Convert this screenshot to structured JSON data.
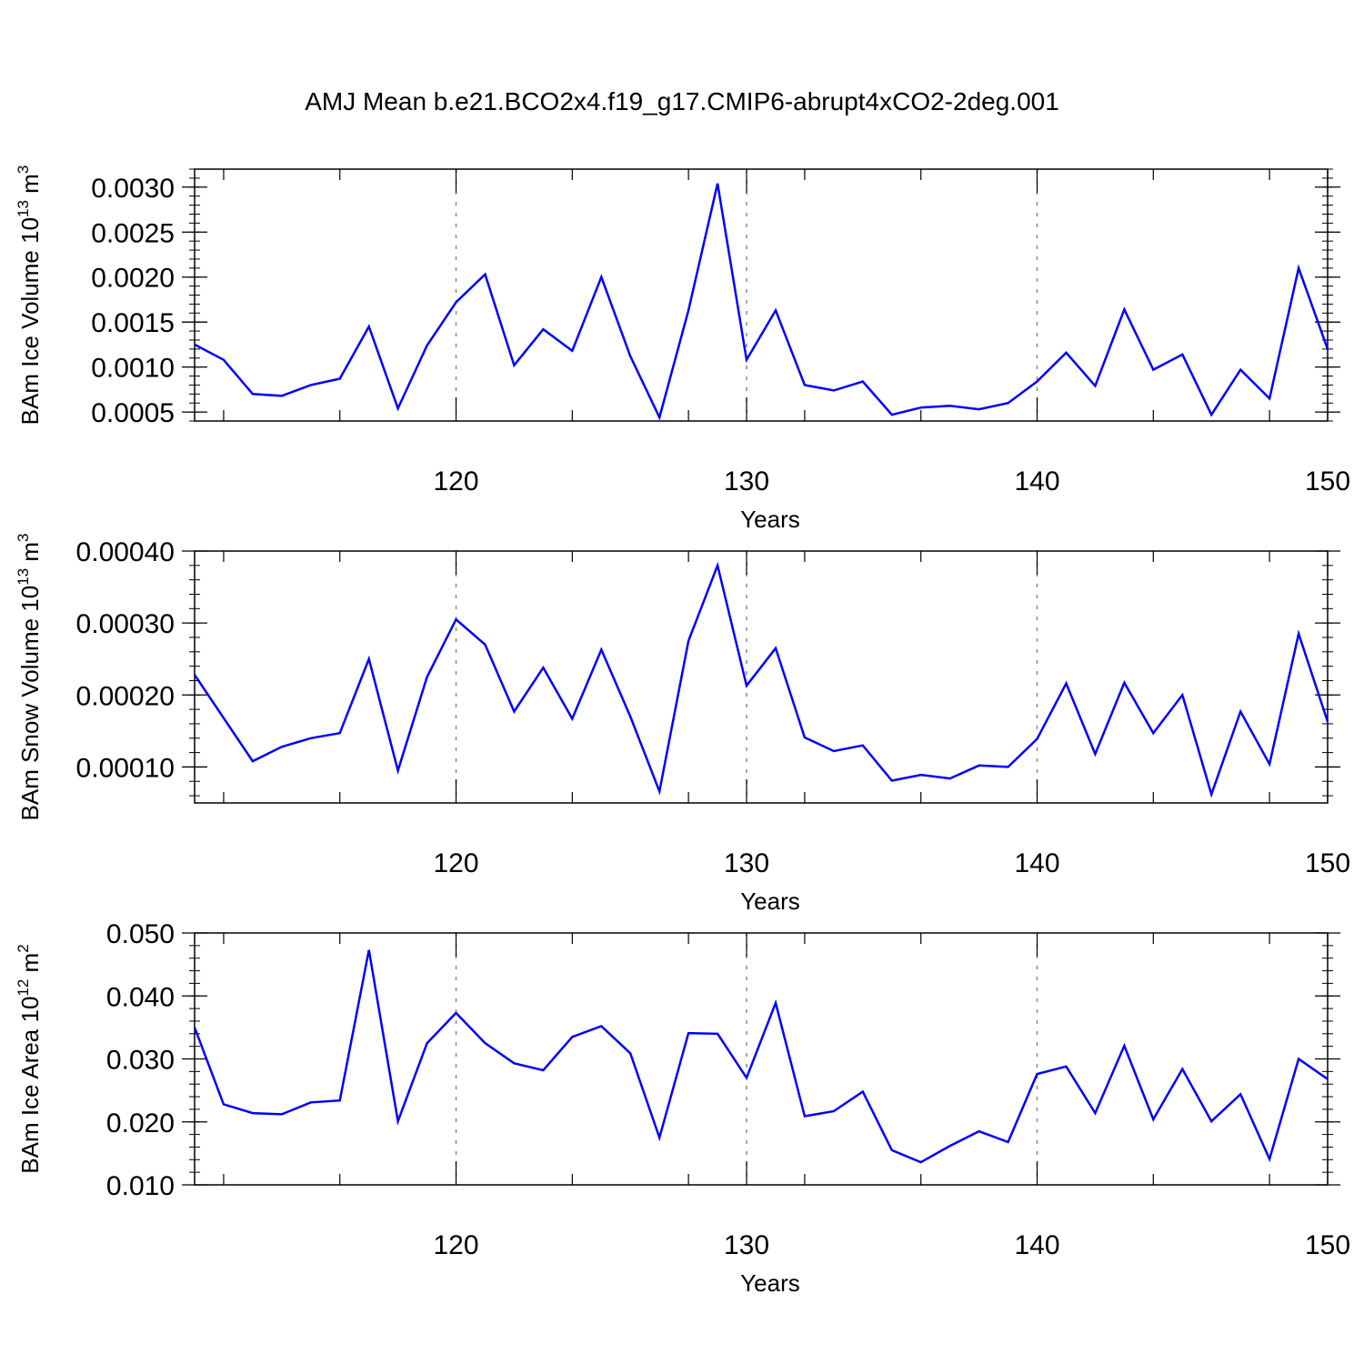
{
  "title": "AMJ Mean b.e21.BCO2x4.f19_g17.CMIP6-abrupt4xCO2-2deg.001",
  "chart_data": [
    {
      "type": "line",
      "xlabel": "Years",
      "ylabel": {
        "text": "BAm Ice Volume 10",
        "exp": "13",
        "unit": " m",
        "unit_exp": "3"
      },
      "xlim": [
        111,
        150
      ],
      "ylim": [
        0.0004,
        0.0032
      ],
      "yticks": [
        "0.0005",
        "0.0010",
        "0.0015",
        "0.0020",
        "0.0025",
        "0.0030"
      ],
      "xticks": [
        "120",
        "130",
        "140",
        "150"
      ],
      "grid": "x-dashed",
      "line_color": "#0000ff",
      "x": [
        111,
        112,
        113,
        114,
        115,
        116,
        117,
        118,
        119,
        120,
        121,
        122,
        123,
        124,
        125,
        126,
        127,
        128,
        129,
        130,
        131,
        132,
        133,
        134,
        135,
        136,
        137,
        138,
        139,
        140,
        141,
        142,
        143,
        144,
        145,
        146,
        147,
        148,
        149,
        150
      ],
      "values": [
        0.00125,
        0.00108,
        0.0007,
        0.00068,
        0.0008,
        0.00087,
        0.00145,
        0.00054,
        0.00124,
        0.00172,
        0.00203,
        0.00102,
        0.00142,
        0.00118,
        0.002,
        0.00112,
        0.00044,
        0.00163,
        0.00304,
        0.00108,
        0.00163,
        0.0008,
        0.00074,
        0.00084,
        0.00047,
        0.00055,
        0.00057,
        0.00053,
        0.0006,
        0.00084,
        0.00116,
        0.00079,
        0.00164,
        0.00097,
        0.00114,
        0.00047,
        0.00097,
        0.00065,
        0.0021,
        0.0012
      ]
    },
    {
      "type": "line",
      "xlabel": "Years",
      "ylabel": {
        "text": "BAm Snow Volume 10",
        "exp": "13",
        "unit": " m",
        "unit_exp": "3"
      },
      "xlim": [
        111,
        150
      ],
      "ylim": [
        5e-05,
        0.0004
      ],
      "yticks": [
        "0.00010",
        "0.00020",
        "0.00030",
        "0.00040"
      ],
      "xticks": [
        "120",
        "130",
        "140",
        "150"
      ],
      "grid": "x-dashed",
      "line_color": "#0000ff",
      "x": [
        111,
        112,
        113,
        114,
        115,
        116,
        117,
        118,
        119,
        120,
        121,
        122,
        123,
        124,
        125,
        126,
        127,
        128,
        129,
        130,
        131,
        132,
        133,
        134,
        135,
        136,
        137,
        138,
        139,
        140,
        141,
        142,
        143,
        144,
        145,
        146,
        147,
        148,
        149,
        150
      ],
      "values": [
        0.000228,
        0.000168,
        0.000108,
        0.000128,
        0.00014,
        0.000147,
        0.00025,
        9.5e-05,
        0.000225,
        0.000305,
        0.00027,
        0.000177,
        0.000238,
        0.000167,
        0.000263,
        0.00017,
        6.6e-05,
        0.000275,
        0.00038,
        0.000213,
        0.000265,
        0.000141,
        0.000122,
        0.00013,
        8.1e-05,
        8.9e-05,
        8.4e-05,
        0.000102,
        0.0001,
        0.000139,
        0.000216,
        0.000118,
        0.000217,
        0.000147,
        0.0002,
        6.2e-05,
        0.000177,
        0.000104,
        0.000285,
        0.000163
      ]
    },
    {
      "type": "line",
      "xlabel": "Years",
      "ylabel": {
        "text": "BAm Ice Area 10",
        "exp": "12",
        "unit": " m",
        "unit_exp": "2"
      },
      "xlim": [
        111,
        150
      ],
      "ylim": [
        0.01,
        0.05
      ],
      "yticks": [
        "0.010",
        "0.020",
        "0.030",
        "0.040",
        "0.050"
      ],
      "xticks": [
        "120",
        "130",
        "140",
        "150"
      ],
      "grid": "x-dashed",
      "line_color": "#0000ff",
      "x": [
        111,
        112,
        113,
        114,
        115,
        116,
        117,
        118,
        119,
        120,
        121,
        122,
        123,
        124,
        125,
        126,
        127,
        128,
        129,
        130,
        131,
        132,
        133,
        134,
        135,
        136,
        137,
        138,
        139,
        140,
        141,
        142,
        143,
        144,
        145,
        146,
        147,
        148,
        149,
        150
      ],
      "values": [
        0.035,
        0.0228,
        0.0214,
        0.0212,
        0.0231,
        0.0234,
        0.0473,
        0.0201,
        0.0325,
        0.0373,
        0.0325,
        0.0293,
        0.0282,
        0.0335,
        0.0352,
        0.0309,
        0.0175,
        0.0341,
        0.034,
        0.027,
        0.0389,
        0.0209,
        0.0217,
        0.0248,
        0.0155,
        0.0136,
        0.0162,
        0.0185,
        0.0168,
        0.0276,
        0.0288,
        0.0214,
        0.0321,
        0.0204,
        0.0284,
        0.0201,
        0.0244,
        0.0141,
        0.03,
        0.0268
      ]
    }
  ]
}
